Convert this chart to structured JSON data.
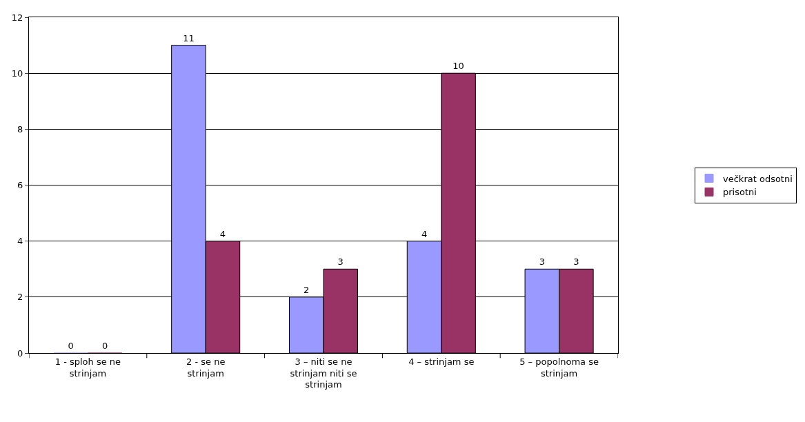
{
  "chart_data": {
    "type": "bar",
    "categories": [
      "1 - sploh se ne strinjam",
      "2 - se ne strinjam",
      "3 – niti se ne strinjam niti se strinjam",
      "4 – strinjam se",
      "5 – popolnoma se strinjam"
    ],
    "series": [
      {
        "name": "večkrat odsotni",
        "color": "#9999ff",
        "values": [
          0,
          11,
          2,
          4,
          3
        ]
      },
      {
        "name": "prisotni",
        "color": "#993366",
        "values": [
          0,
          4,
          3,
          10,
          3
        ]
      }
    ],
    "ylim": [
      0,
      12
    ],
    "yticks": [
      0,
      2,
      4,
      6,
      8,
      10,
      12
    ],
    "grid": "y",
    "legend": "right",
    "data_labels": true
  }
}
